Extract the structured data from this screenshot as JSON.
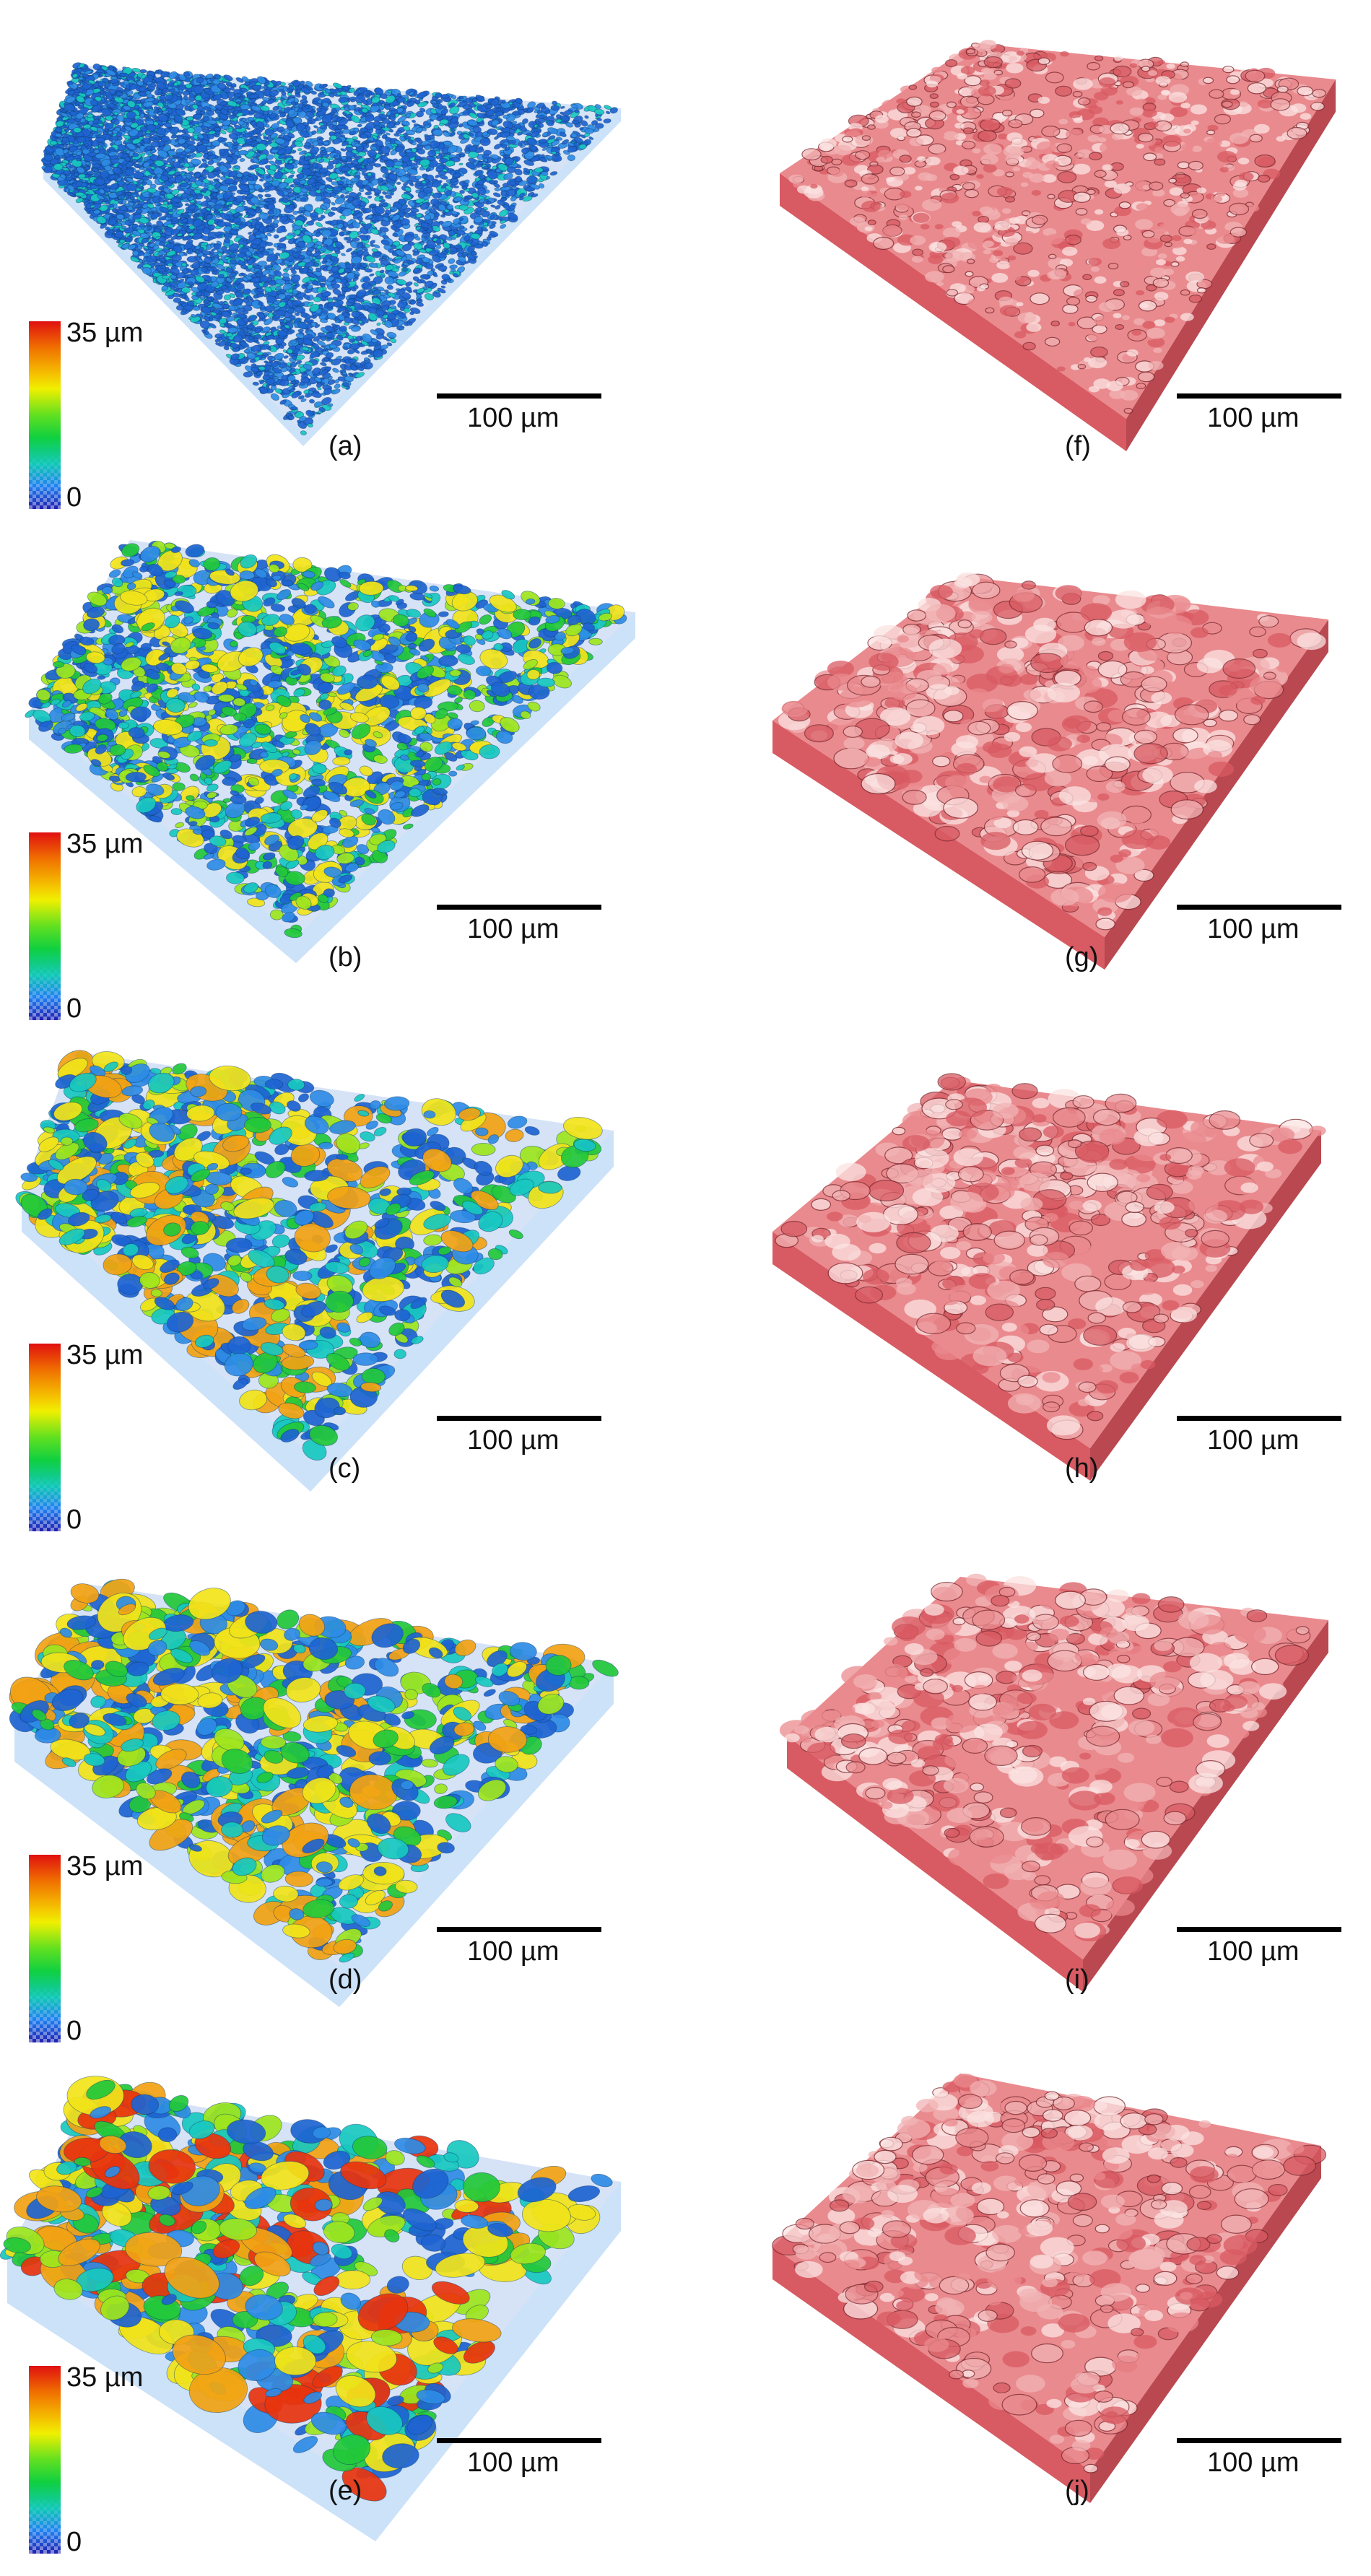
{
  "colors": {
    "pore_palette": [
      "#1e64d2",
      "#2e8ce6",
      "#18c8c0",
      "#22c83a",
      "#9ee61e",
      "#f2e41a",
      "#f2a214",
      "#e8340e"
    ],
    "solid_palette": [
      "#d85a62",
      "#e98a8e",
      "#f2b3b4",
      "#fbe3e2",
      "#b94850",
      "#7a2a30"
    ],
    "text": "#111111"
  },
  "colorbar": {
    "max_label": "35 µm",
    "min_label": "0"
  },
  "panels": [
    {
      "id": "a",
      "label": "(a)",
      "scalebar": "100 µm",
      "type": "pore"
    },
    {
      "id": "f",
      "label": "(f)",
      "scalebar": "100 µm",
      "type": "solid"
    },
    {
      "id": "b",
      "label": "(b)",
      "scalebar": "100 µm",
      "type": "pore"
    },
    {
      "id": "g",
      "label": "(g)",
      "scalebar": "100 µm",
      "type": "solid"
    },
    {
      "id": "c",
      "label": "(c)",
      "scalebar": "100 µm",
      "type": "pore"
    },
    {
      "id": "h",
      "label": "(h)",
      "scalebar": "100 µm",
      "type": "solid"
    },
    {
      "id": "d",
      "label": "(d)",
      "scalebar": "100 µm",
      "type": "pore"
    },
    {
      "id": "i",
      "label": "(i)",
      "scalebar": "100 µm",
      "type": "solid"
    },
    {
      "id": "e",
      "label": "(e)",
      "scalebar": "100 µm",
      "type": "pore"
    },
    {
      "id": "j",
      "label": "(j)",
      "scalebar": "100 µm",
      "type": "solid"
    }
  ]
}
